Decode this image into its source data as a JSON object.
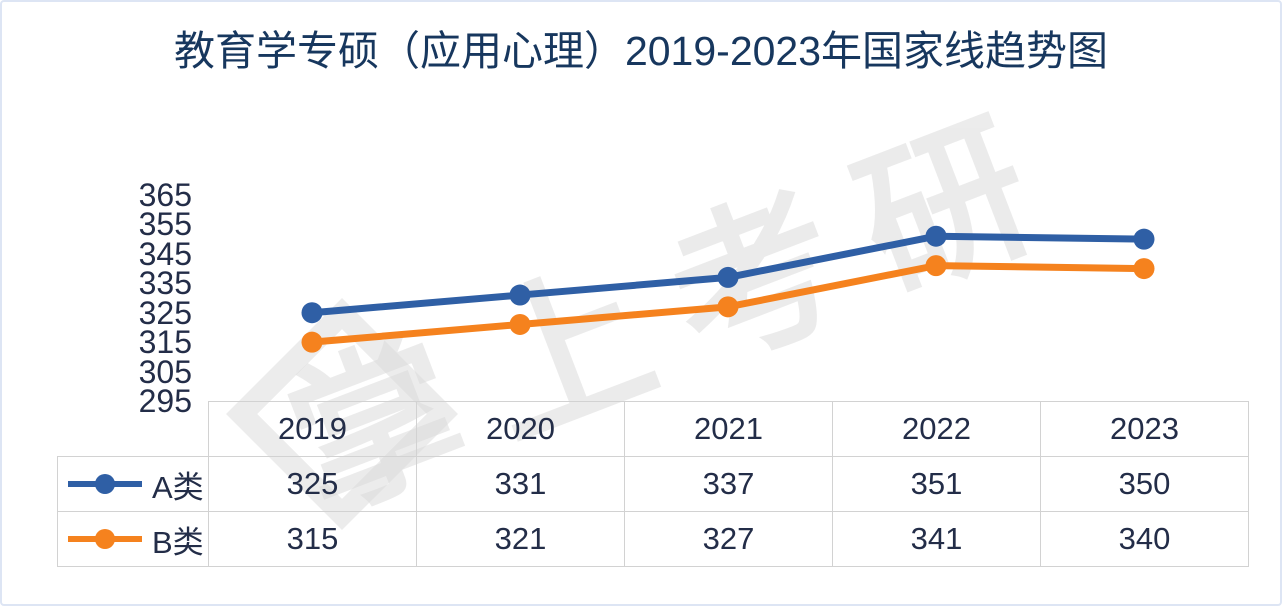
{
  "title": "教育学专硕（应用心理）2019-2023年国家线趋势图",
  "watermark": "掌上考研",
  "chart_data": {
    "type": "line",
    "title": "教育学专硕（应用心理）2019-2023年国家线趋势图",
    "categories": [
      "2019",
      "2020",
      "2021",
      "2022",
      "2023"
    ],
    "series": [
      {
        "name": "A类",
        "color": "#2f5fa5",
        "values": [
          325,
          331,
          337,
          351,
          350
        ]
      },
      {
        "name": "B类",
        "color": "#f5821e",
        "values": [
          315,
          321,
          327,
          341,
          340
        ]
      }
    ],
    "ylim": [
      295,
      365
    ],
    "yticks": [
      365,
      355,
      345,
      335,
      325,
      315,
      305,
      295
    ],
    "grid": false,
    "legend_position": "table-left",
    "xlabel": "",
    "ylabel": ""
  },
  "colors": {
    "title_text": "#17375e",
    "body_text": "#232d48",
    "table_border": "#d2d2d2",
    "watermark": "#d9d9d9",
    "frame_border": "#dde5f4",
    "series_a": "#2f5fa5",
    "series_b": "#f5821e"
  }
}
